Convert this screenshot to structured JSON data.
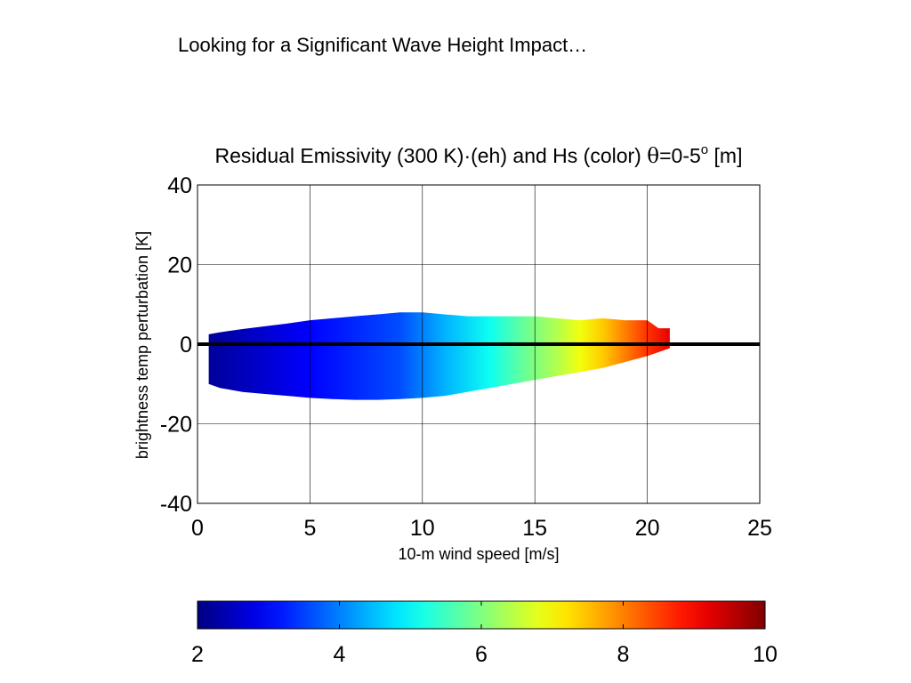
{
  "slide": {
    "heading": "Looking for a Significant Wave Height Impact…"
  },
  "chart_data": {
    "type": "heatmap",
    "title": {
      "prefix": "Residual Emissivity (300 K)",
      "dot": "·",
      "mid": "(eh) and Hs (color) ",
      "theta": "θ",
      "range": "=0-5",
      "degree": "o",
      "unit": " [m]"
    },
    "xlabel": "10-m wind speed [m/s]",
    "ylabel": "brightness temp perturbation [K]",
    "xlim": [
      0,
      25
    ],
    "ylim": [
      -40,
      40
    ],
    "x_ticks": [
      "0",
      "5",
      "10",
      "15",
      "20",
      "25"
    ],
    "y_ticks": [
      "40",
      "20",
      "0",
      "-20",
      "-40"
    ],
    "grid": true,
    "zero_line": 0,
    "envelope": {
      "x": [
        0.5,
        1,
        2,
        3,
        4,
        5,
        6,
        7,
        8,
        9,
        10,
        11,
        12,
        13,
        14,
        15,
        16,
        17,
        18,
        19,
        20,
        20.5,
        21
      ],
      "upper": [
        2.5,
        3,
        3.8,
        4.5,
        5.2,
        6,
        6.5,
        7,
        7.5,
        8,
        8,
        7.5,
        7,
        7,
        7,
        7,
        6.5,
        6,
        6.5,
        6,
        6,
        4,
        4
      ],
      "lower": [
        -10,
        -11,
        -12,
        -12.5,
        -13,
        -13.5,
        -13.8,
        -14,
        -14,
        -13.8,
        -13.5,
        -13,
        -12,
        -11,
        -10,
        -9,
        -8,
        -7,
        -6,
        -4.5,
        -3,
        -2,
        -1
      ]
    },
    "hs_color_by_wind": {
      "x": [
        0.5,
        5,
        9,
        11,
        13,
        14.5,
        16,
        17,
        18,
        19,
        20,
        21
      ],
      "hs": [
        2.2,
        3.0,
        3.6,
        4.4,
        5.1,
        5.8,
        6.4,
        6.9,
        7.4,
        8.0,
        8.6,
        9.2
      ]
    },
    "colorbar": {
      "range": [
        2,
        10
      ],
      "ticks": [
        "2",
        "4",
        "6",
        "8",
        "10"
      ],
      "colormap": "jet"
    }
  }
}
